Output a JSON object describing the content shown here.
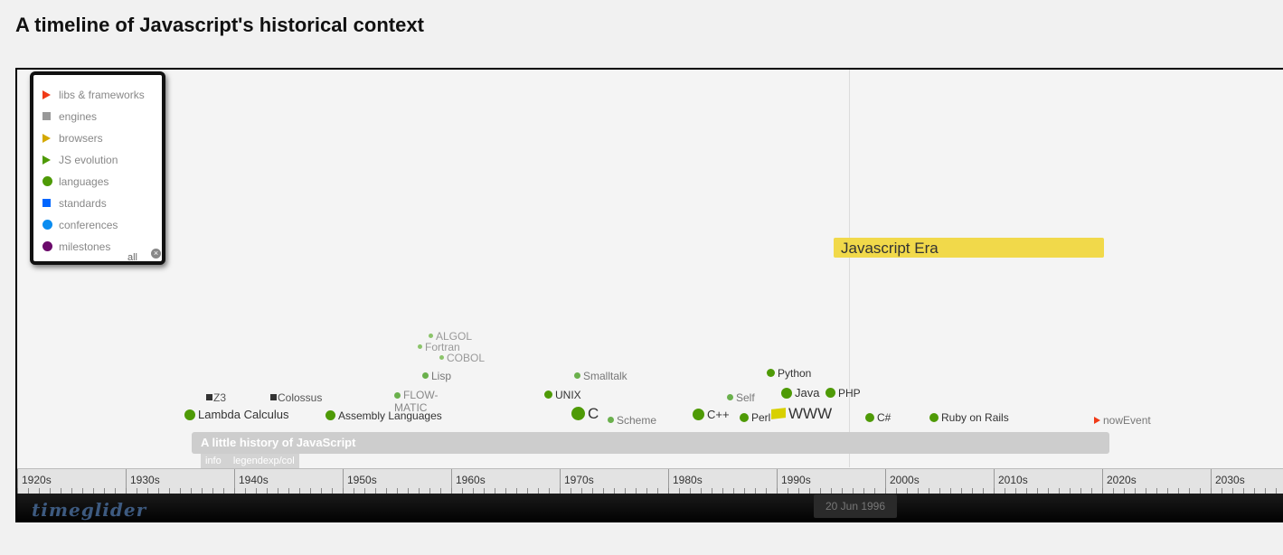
{
  "page": {
    "title": "A timeline of Javascript's historical context"
  },
  "legend": {
    "items": [
      {
        "label": "libs & frameworks",
        "shape": "triangle",
        "color": "#f03a17"
      },
      {
        "label": "engines",
        "shape": "square",
        "color": "#999999"
      },
      {
        "label": "browsers",
        "shape": "triangle",
        "color": "#d4a800"
      },
      {
        "label": "JS evolution",
        "shape": "triangle",
        "color": "#4e9a06"
      },
      {
        "label": "languages",
        "shape": "circle",
        "color": "#4e9a06"
      },
      {
        "label": "standards",
        "shape": "square",
        "color": "#0066ff"
      },
      {
        "label": "conferences",
        "shape": "circle",
        "color": "#0a8cf0"
      },
      {
        "label": "milestones",
        "shape": "circle",
        "color": "#6b0a6b"
      }
    ],
    "all_label": "all",
    "close_icon": "close-icon"
  },
  "era_bar": {
    "label": "Javascript Era",
    "color": "#f1d94a"
  },
  "history_bar": {
    "label": "A little history of JavaScript",
    "tabs": [
      "info",
      "legendexp/col"
    ]
  },
  "events": [
    {
      "id": "algol",
      "label": "ALGOL"
    },
    {
      "id": "fortran",
      "label": "Fortran"
    },
    {
      "id": "cobol",
      "label": "COBOL"
    },
    {
      "id": "lisp",
      "label": "Lisp"
    },
    {
      "id": "smalltalk",
      "label": "Smalltalk"
    },
    {
      "id": "python",
      "label": "Python"
    },
    {
      "id": "z3",
      "label": "Z3"
    },
    {
      "id": "colossus",
      "label": "Colossus"
    },
    {
      "id": "flowmatic",
      "label": "FLOW-MATIC"
    },
    {
      "id": "unix",
      "label": "UNIX"
    },
    {
      "id": "self",
      "label": "Self"
    },
    {
      "id": "java",
      "label": "Java"
    },
    {
      "id": "php",
      "label": "PHP"
    },
    {
      "id": "lambda",
      "label": "Lambda Calculus"
    },
    {
      "id": "assembly",
      "label": "Assembly Languages"
    },
    {
      "id": "c",
      "label": "C"
    },
    {
      "id": "scheme",
      "label": "Scheme"
    },
    {
      "id": "cpp",
      "label": "C++"
    },
    {
      "id": "perl",
      "label": "Perl"
    },
    {
      "id": "www",
      "label": "WWW"
    },
    {
      "id": "csharp",
      "label": "C#"
    },
    {
      "id": "rails",
      "label": "Ruby on Rails"
    },
    {
      "id": "now",
      "label": "nowEvent"
    }
  ],
  "ruler": {
    "decades": [
      "1920s",
      "1930s",
      "1940s",
      "1950s",
      "1960s",
      "1970s",
      "1980s",
      "1990s",
      "2000s",
      "2010s",
      "2020s",
      "2030s"
    ]
  },
  "footer": {
    "logo": "timeglider",
    "current_date": "20 Jun 1996"
  }
}
